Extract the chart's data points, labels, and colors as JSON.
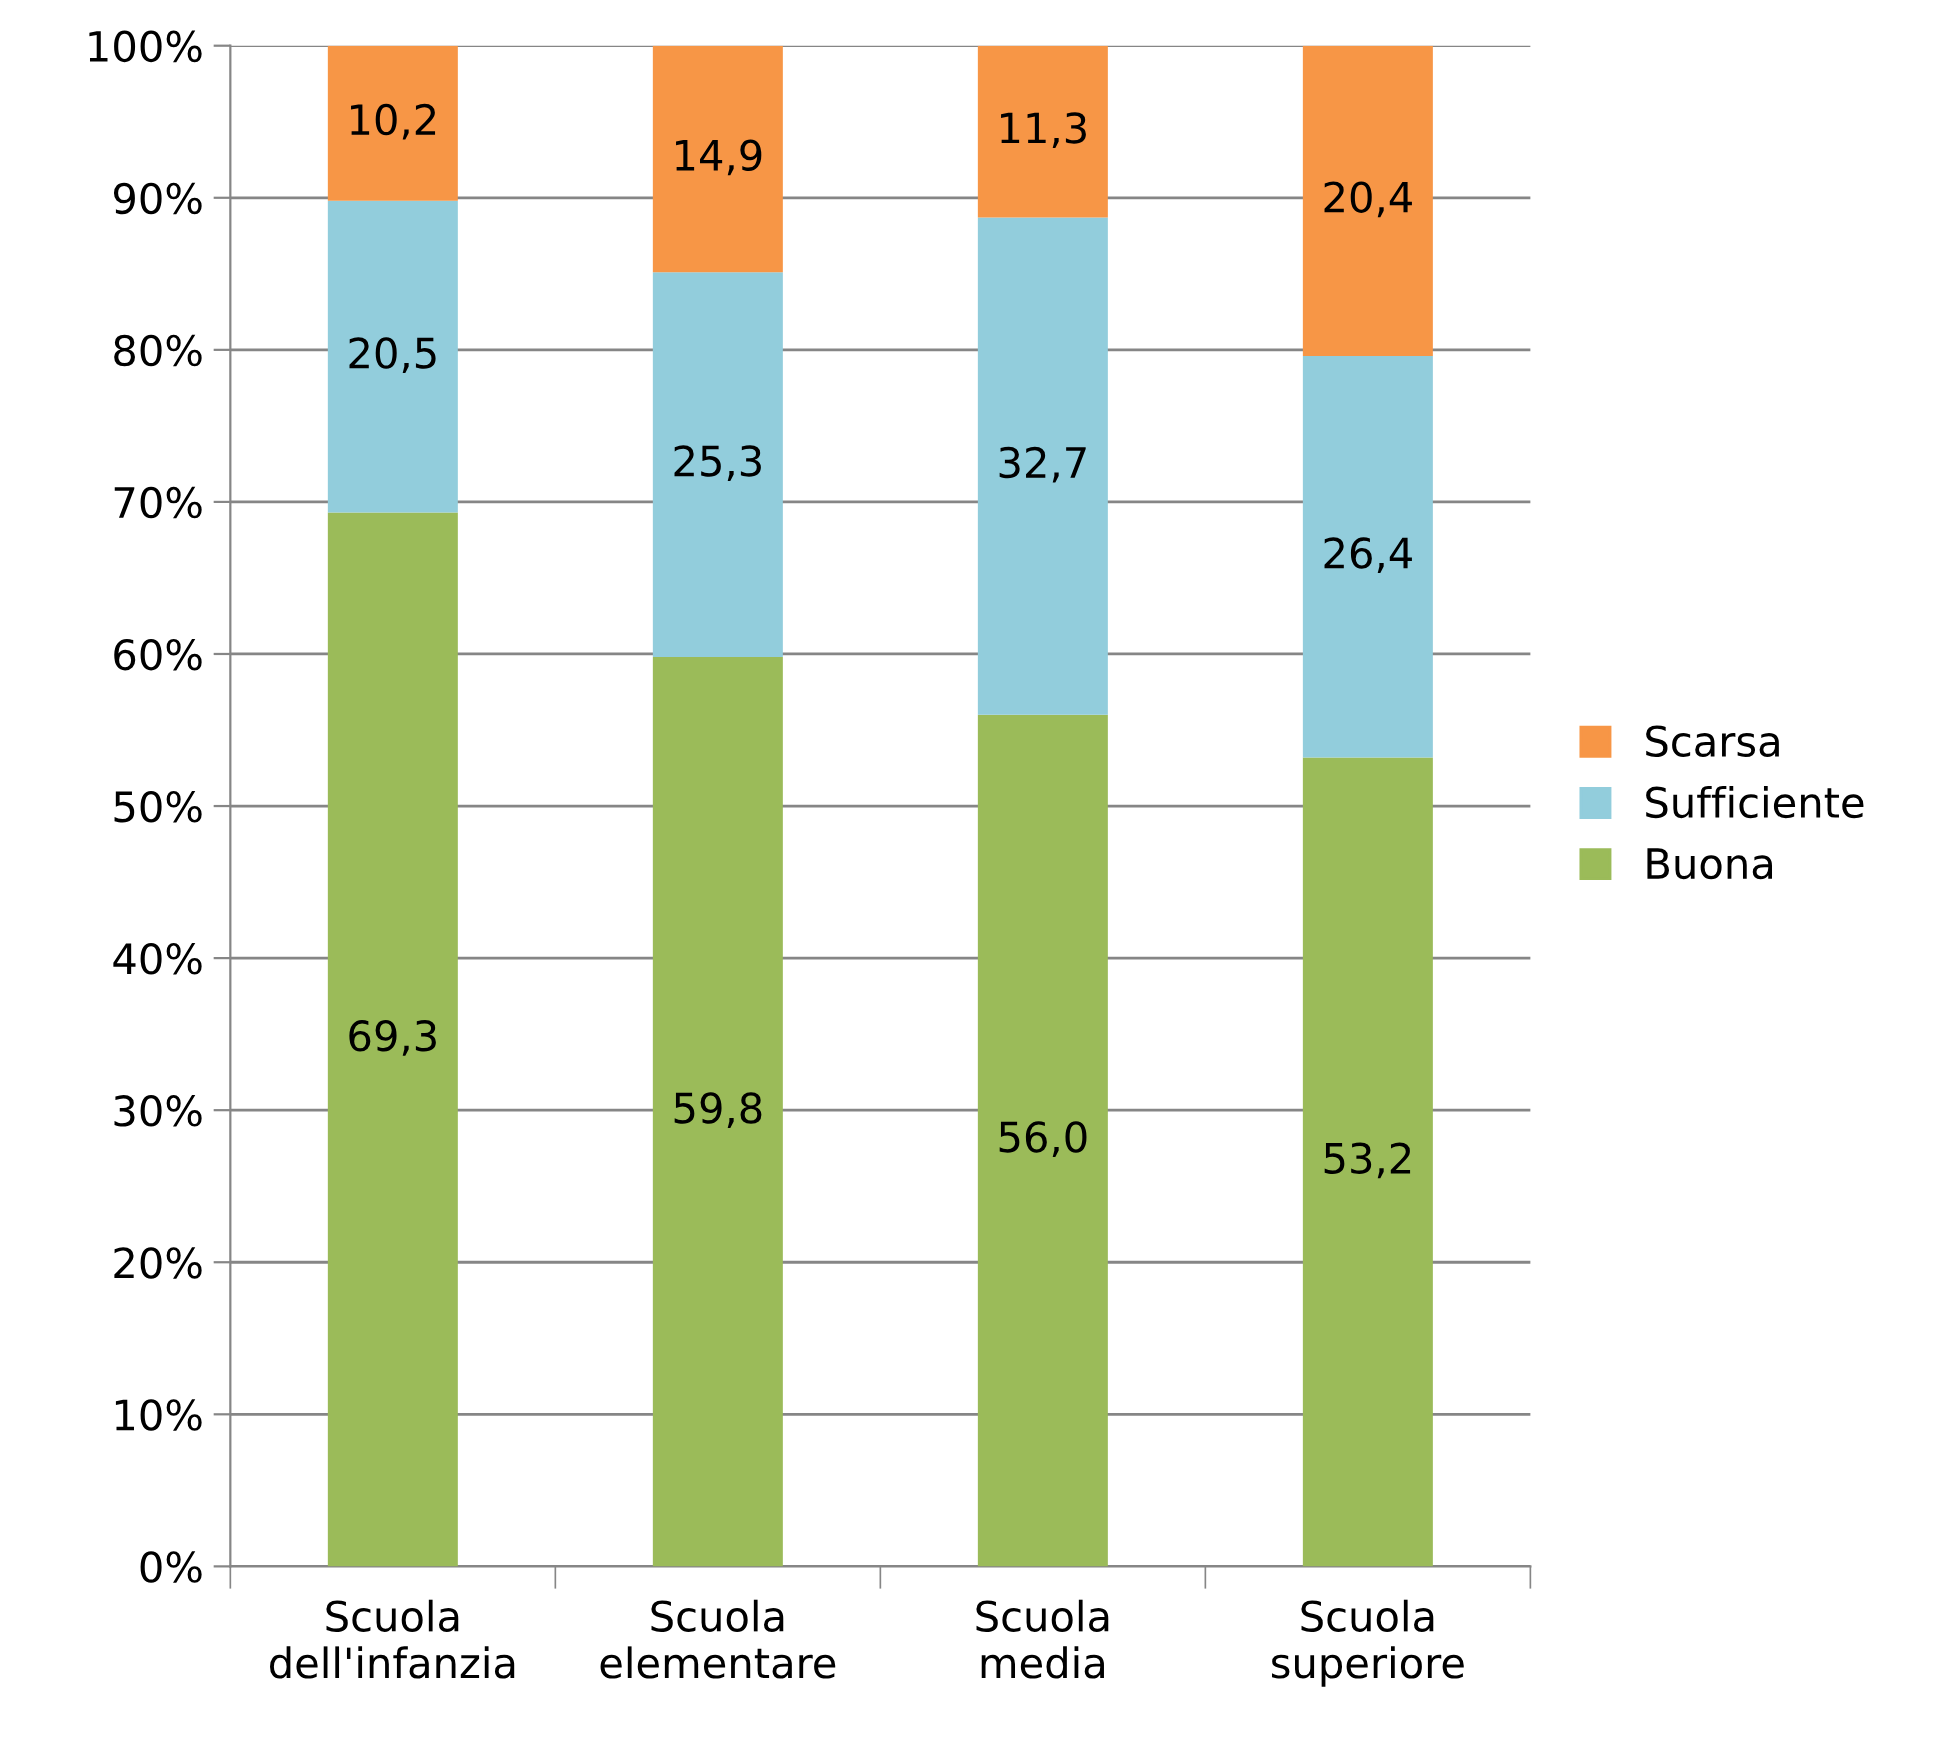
{
  "chart_data": {
    "type": "bar",
    "stacked": true,
    "categories": [
      "Scuola\ndell'infanzia",
      "Scuola\nelementare",
      "Scuola\nmedia",
      "Scuola\nsuperiore"
    ],
    "series": [
      {
        "name": "Buona",
        "color": "#9bbb59",
        "values": [
          69.3,
          59.8,
          56.0,
          53.2
        ],
        "value_labels": [
          "69,3",
          "59,8",
          "56,0",
          "53,2"
        ]
      },
      {
        "name": "Sufficiente",
        "color": "#92cddc",
        "values": [
          20.5,
          25.3,
          32.7,
          26.4
        ],
        "value_labels": [
          "20,5",
          "25,3",
          "32,7",
          "26,4"
        ]
      },
      {
        "name": "Scarsa",
        "color": "#f79646",
        "values": [
          10.2,
          14.9,
          11.3,
          20.4
        ],
        "value_labels": [
          "10,2",
          "14,9",
          "11,3",
          "20,4"
        ]
      }
    ],
    "ylim": [
      0,
      100
    ],
    "yticks": [
      {
        "value": 0,
        "label": "0%"
      },
      {
        "value": 10,
        "label": "10%"
      },
      {
        "value": 20,
        "label": "20%"
      },
      {
        "value": 30,
        "label": "30%"
      },
      {
        "value": 40,
        "label": "40%"
      },
      {
        "value": 50,
        "label": "50%"
      },
      {
        "value": 60,
        "label": "60%"
      },
      {
        "value": 70,
        "label": "70%"
      },
      {
        "value": 80,
        "label": "80%"
      },
      {
        "value": 90,
        "label": "90%"
      },
      {
        "value": 100,
        "label": "100%"
      }
    ],
    "grid": "y",
    "legend": "right"
  }
}
